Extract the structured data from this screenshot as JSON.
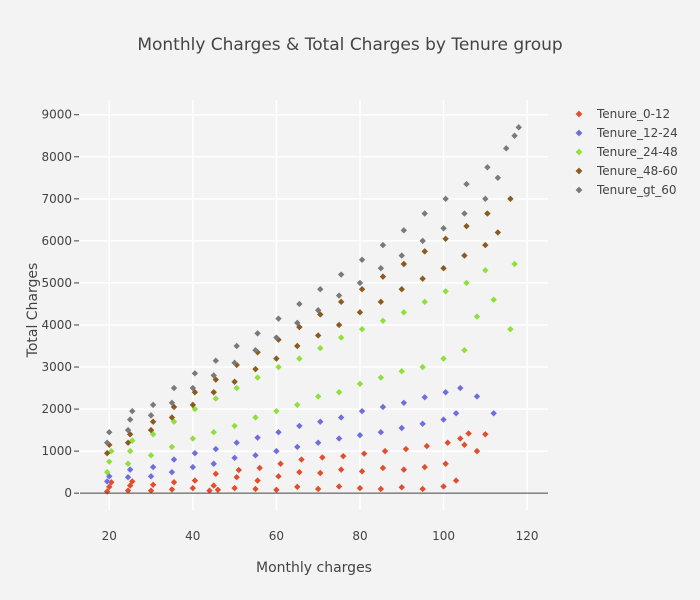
{
  "chart_data": {
    "type": "scatter",
    "title": "Monthly Charges & Total Charges by Tenure group",
    "xlabel": "Monthly charges",
    "ylabel": "Total Charges",
    "xlim": [
      13,
      125
    ],
    "ylim": [
      -400,
      9350
    ],
    "xticks": [
      20,
      40,
      60,
      80,
      100,
      120
    ],
    "yticks": [
      0,
      1000,
      2000,
      3000,
      4000,
      5000,
      6000,
      7000,
      8000,
      9000
    ],
    "grid": true,
    "legend_position": "top-right",
    "marker": "diamond",
    "series": [
      {
        "name": "Tenure_0-12",
        "color": "#e04e2e",
        "points": [
          [
            19.5,
            40
          ],
          [
            20,
            150
          ],
          [
            20.5,
            260
          ],
          [
            24.5,
            60
          ],
          [
            25,
            180
          ],
          [
            25.5,
            280
          ],
          [
            30,
            60
          ],
          [
            30.5,
            200
          ],
          [
            35,
            90
          ],
          [
            35.5,
            260
          ],
          [
            40,
            120
          ],
          [
            40.5,
            300
          ],
          [
            44,
            60
          ],
          [
            45,
            180
          ],
          [
            45.5,
            460
          ],
          [
            46,
            80
          ],
          [
            50,
            120
          ],
          [
            50.5,
            380
          ],
          [
            51,
            550
          ],
          [
            55,
            100
          ],
          [
            55.5,
            300
          ],
          [
            56,
            600
          ],
          [
            60,
            80
          ],
          [
            60.5,
            400
          ],
          [
            61,
            700
          ],
          [
            65,
            150
          ],
          [
            65.5,
            500
          ],
          [
            66,
            800
          ],
          [
            70,
            100
          ],
          [
            70.5,
            480
          ],
          [
            71,
            850
          ],
          [
            75,
            160
          ],
          [
            75.5,
            560
          ],
          [
            76,
            880
          ],
          [
            80,
            120
          ],
          [
            80.5,
            520
          ],
          [
            81,
            940
          ],
          [
            85,
            100
          ],
          [
            85.5,
            600
          ],
          [
            86,
            1000
          ],
          [
            90,
            140
          ],
          [
            90.5,
            560
          ],
          [
            91,
            1050
          ],
          [
            95,
            100
          ],
          [
            95.5,
            620
          ],
          [
            96,
            1120
          ],
          [
            100,
            160
          ],
          [
            100.5,
            700
          ],
          [
            101,
            1200
          ],
          [
            103,
            300
          ],
          [
            104,
            1300
          ],
          [
            105,
            1150
          ],
          [
            106,
            1420
          ],
          [
            108,
            1000
          ],
          [
            110,
            1400
          ]
        ]
      },
      {
        "name": "Tenure_12-24",
        "color": "#6e6ee0",
        "points": [
          [
            19.5,
            280
          ],
          [
            20,
            400
          ],
          [
            24.5,
            380
          ],
          [
            25,
            560
          ],
          [
            30,
            400
          ],
          [
            30.5,
            620
          ],
          [
            35,
            500
          ],
          [
            35.5,
            800
          ],
          [
            40,
            620
          ],
          [
            40.5,
            950
          ],
          [
            45,
            700
          ],
          [
            45.5,
            1050
          ],
          [
            50,
            840
          ],
          [
            50.5,
            1200
          ],
          [
            55,
            900
          ],
          [
            55.5,
            1320
          ],
          [
            60,
            1000
          ],
          [
            60.5,
            1450
          ],
          [
            65,
            1100
          ],
          [
            65.5,
            1600
          ],
          [
            70,
            1200
          ],
          [
            70.5,
            1700
          ],
          [
            75,
            1300
          ],
          [
            75.5,
            1800
          ],
          [
            80,
            1380
          ],
          [
            80.5,
            1950
          ],
          [
            85,
            1450
          ],
          [
            85.5,
            2050
          ],
          [
            90,
            1550
          ],
          [
            90.5,
            2150
          ],
          [
            95,
            1650
          ],
          [
            95.5,
            2280
          ],
          [
            100,
            1750
          ],
          [
            100.5,
            2400
          ],
          [
            103,
            1900
          ],
          [
            104,
            2500
          ],
          [
            108,
            2300
          ],
          [
            112,
            1900
          ]
        ]
      },
      {
        "name": "Tenure_24-48",
        "color": "#8fe03c",
        "points": [
          [
            19.5,
            500
          ],
          [
            20,
            750
          ],
          [
            20.5,
            1000
          ],
          [
            24.5,
            700
          ],
          [
            25,
            1000
          ],
          [
            25.5,
            1250
          ],
          [
            30,
            900
          ],
          [
            30.5,
            1400
          ],
          [
            35,
            1100
          ],
          [
            35.5,
            1700
          ],
          [
            40,
            1300
          ],
          [
            40.5,
            2000
          ],
          [
            45,
            1450
          ],
          [
            45.5,
            2250
          ],
          [
            50,
            1600
          ],
          [
            50.5,
            2500
          ],
          [
            55,
            1800
          ],
          [
            55.5,
            2750
          ],
          [
            60,
            1950
          ],
          [
            60.5,
            3000
          ],
          [
            65,
            2100
          ],
          [
            65.5,
            3200
          ],
          [
            70,
            2300
          ],
          [
            70.5,
            3450
          ],
          [
            75,
            2400
          ],
          [
            75.5,
            3700
          ],
          [
            80,
            2600
          ],
          [
            80.5,
            3900
          ],
          [
            85,
            2750
          ],
          [
            85.5,
            4100
          ],
          [
            90,
            2900
          ],
          [
            90.5,
            4300
          ],
          [
            95,
            3000
          ],
          [
            95.5,
            4550
          ],
          [
            100,
            3200
          ],
          [
            100.5,
            4800
          ],
          [
            105,
            3400
          ],
          [
            105.5,
            5000
          ],
          [
            108,
            4200
          ],
          [
            110,
            5300
          ],
          [
            112,
            4600
          ],
          [
            116,
            3900
          ],
          [
            117,
            5450
          ]
        ]
      },
      {
        "name": "Tenure_48-60",
        "color": "#8b5a1e",
        "points": [
          [
            19.5,
            950
          ],
          [
            20,
            1150
          ],
          [
            24.5,
            1200
          ],
          [
            25,
            1400
          ],
          [
            30,
            1500
          ],
          [
            30.5,
            1700
          ],
          [
            35,
            1800
          ],
          [
            35.5,
            2050
          ],
          [
            40,
            2100
          ],
          [
            40.5,
            2400
          ],
          [
            45,
            2400
          ],
          [
            45.5,
            2700
          ],
          [
            50,
            2650
          ],
          [
            50.5,
            3050
          ],
          [
            55,
            2950
          ],
          [
            55.5,
            3350
          ],
          [
            60,
            3200
          ],
          [
            60.5,
            3650
          ],
          [
            65,
            3500
          ],
          [
            65.5,
            3950
          ],
          [
            70,
            3750
          ],
          [
            70.5,
            4250
          ],
          [
            75,
            4000
          ],
          [
            75.5,
            4550
          ],
          [
            80,
            4300
          ],
          [
            80.5,
            4850
          ],
          [
            85,
            4550
          ],
          [
            85.5,
            5150
          ],
          [
            90,
            4850
          ],
          [
            90.5,
            5450
          ],
          [
            95,
            5100
          ],
          [
            95.5,
            5750
          ],
          [
            100,
            5350
          ],
          [
            100.5,
            6050
          ],
          [
            105,
            5650
          ],
          [
            105.5,
            6350
          ],
          [
            110,
            5900
          ],
          [
            110.5,
            6650
          ],
          [
            113,
            6200
          ],
          [
            116,
            7000
          ]
        ]
      },
      {
        "name": "Tenure_gt_60",
        "color": "#7a7a7a",
        "points": [
          [
            19.5,
            1200
          ],
          [
            20,
            1450
          ],
          [
            24.5,
            1500
          ],
          [
            25,
            1750
          ],
          [
            25.5,
            1950
          ],
          [
            30,
            1850
          ],
          [
            30.5,
            2100
          ],
          [
            35,
            2150
          ],
          [
            35.5,
            2500
          ],
          [
            40,
            2500
          ],
          [
            40.5,
            2850
          ],
          [
            45,
            2800
          ],
          [
            45.5,
            3150
          ],
          [
            50,
            3100
          ],
          [
            50.5,
            3500
          ],
          [
            55,
            3400
          ],
          [
            55.5,
            3800
          ],
          [
            60,
            3700
          ],
          [
            60.5,
            4150
          ],
          [
            65,
            4050
          ],
          [
            65.5,
            4500
          ],
          [
            70,
            4350
          ],
          [
            70.5,
            4850
          ],
          [
            75,
            4700
          ],
          [
            75.5,
            5200
          ],
          [
            80,
            5000
          ],
          [
            80.5,
            5550
          ],
          [
            85,
            5350
          ],
          [
            85.5,
            5900
          ],
          [
            90,
            5650
          ],
          [
            90.5,
            6250
          ],
          [
            95,
            6000
          ],
          [
            95.5,
            6650
          ],
          [
            100,
            6300
          ],
          [
            100.5,
            7000
          ],
          [
            105,
            6650
          ],
          [
            105.5,
            7350
          ],
          [
            110,
            7000
          ],
          [
            110.5,
            7750
          ],
          [
            113,
            7500
          ],
          [
            115,
            8200
          ],
          [
            117,
            8500
          ],
          [
            118,
            8700
          ]
        ]
      }
    ]
  }
}
